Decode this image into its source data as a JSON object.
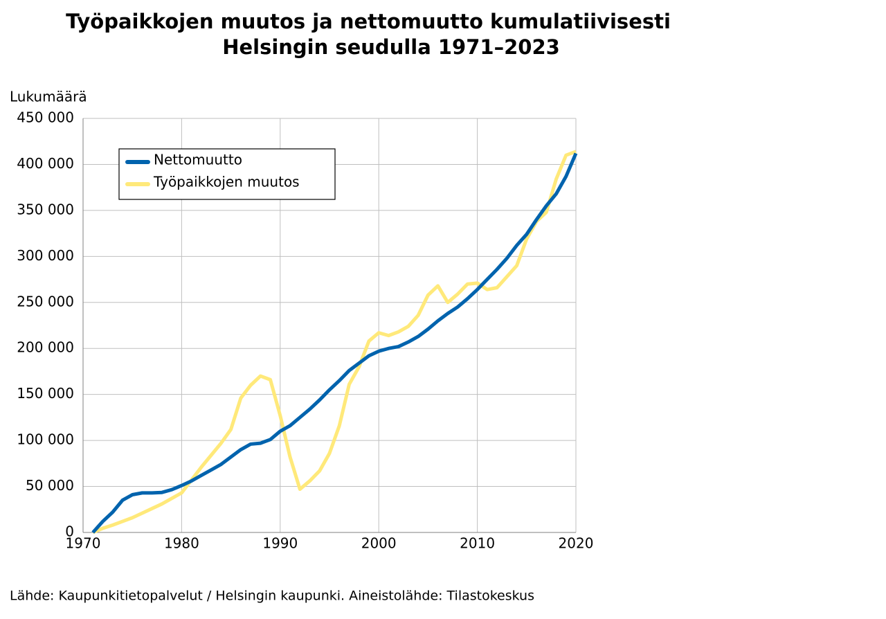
{
  "chart_data": {
    "type": "line",
    "title": [
      "Työpaikkojen muutos ja nettomuutto kumulatiivisesti",
      "Helsingin  seudulla 1971–2023"
    ],
    "y_label": "Lukumäärä",
    "source": "Lähde: Kaupunkitietopalvelut / Helsingin kaupunki. Aineistolähde: Tilastokeskus",
    "x": [
      1971,
      1972,
      1973,
      1974,
      1975,
      1976,
      1977,
      1978,
      1979,
      1980,
      1981,
      1982,
      1983,
      1984,
      1985,
      1986,
      1987,
      1988,
      1989,
      1990,
      1991,
      1992,
      1993,
      1994,
      1995,
      1996,
      1997,
      1998,
      1999,
      2000,
      2001,
      2002,
      2003,
      2004,
      2005,
      2006,
      2007,
      2008,
      2009,
      2010,
      2011,
      2012,
      2013,
      2014,
      2015,
      2016,
      2017,
      2018,
      2019,
      2020
    ],
    "series": [
      {
        "name": "Nettomuutto",
        "color": "#0063ad",
        "values": [
          0,
          12000,
          22000,
          35000,
          41000,
          43000,
          43000,
          43500,
          46500,
          51000,
          56000,
          62000,
          68000,
          74000,
          82000,
          90000,
          96000,
          97000,
          101000,
          110000,
          116000,
          125000,
          134000,
          144000,
          155000,
          165000,
          176000,
          184000,
          192000,
          197000,
          200000,
          202000,
          207000,
          213000,
          221000,
          230000,
          238000,
          245000,
          254000,
          264000,
          275000,
          286000,
          298000,
          312000,
          324000,
          340000,
          355000,
          368000,
          387000,
          412000
        ]
      },
      {
        "name": "Työpaikkojen muutos",
        "color": "#ffe97a",
        "values": [
          0,
          4500,
          8000,
          12000,
          16000,
          21000,
          26000,
          31000,
          37000,
          43000,
          57000,
          71000,
          84000,
          97000,
          112000,
          146000,
          160000,
          170000,
          166000,
          127000,
          82000,
          47000,
          56000,
          67000,
          86000,
          116000,
          161000,
          180000,
          208000,
          217000,
          214000,
          218000,
          224000,
          236000,
          258000,
          268000,
          250000,
          259000,
          270000,
          271000,
          264000,
          266000,
          278000,
          290000,
          319000,
          338000,
          348000,
          384000,
          410000,
          414000
        ]
      }
    ],
    "xlim": [
      1970,
      2020
    ],
    "xticks": [
      1970,
      1980,
      1990,
      2000,
      2010,
      2020
    ],
    "ylim": [
      0,
      450000
    ],
    "yticks": [
      0,
      {
        "value": 50000,
        "label": "50 000"
      },
      {
        "value": 100000,
        "label": "100 000"
      },
      {
        "value": 150000,
        "label": "150 000"
      },
      {
        "value": 200000,
        "label": "200 000"
      },
      {
        "value": 250000,
        "label": "250 000"
      },
      {
        "value": 300000,
        "label": "300 000"
      },
      {
        "value": 350000,
        "label": "350 000"
      },
      {
        "value": 400000,
        "label": "400 000"
      },
      {
        "value": 450000,
        "label": "450 000"
      }
    ],
    "grid": true
  }
}
